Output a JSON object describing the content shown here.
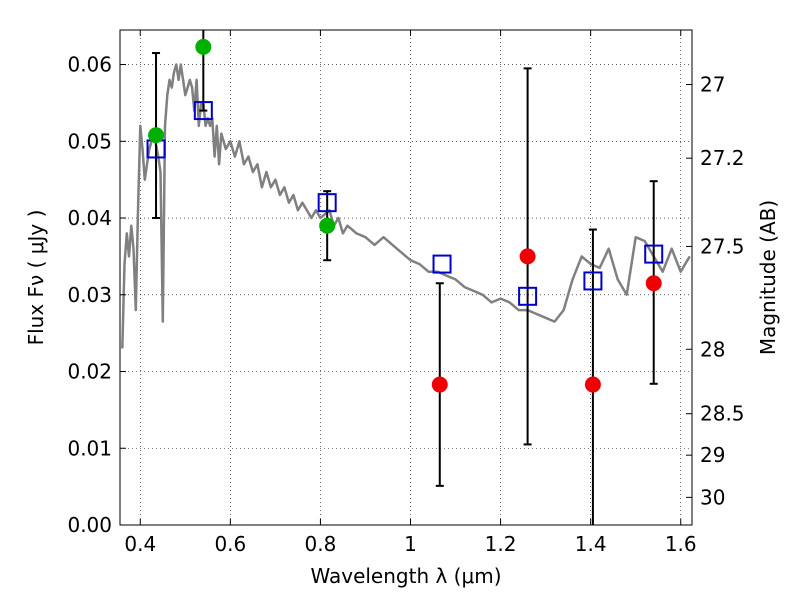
{
  "chart_data": {
    "type": "scatter",
    "xlabel": "Wavelength  λ (μm)",
    "ylabel": "Flux  Fν  ( μJy )",
    "y2label": "Magnitude (AB)",
    "xlim": [
      0.355,
      1.625
    ],
    "ylim": [
      0.0,
      0.0645
    ],
    "grid": true,
    "legend": "none",
    "x_ticks": [
      {
        "v": 0.4,
        "label": "0.4"
      },
      {
        "v": 0.6,
        "label": "0.6"
      },
      {
        "v": 0.8,
        "label": "0.8"
      },
      {
        "v": 1.0,
        "label": "1"
      },
      {
        "v": 1.2,
        "label": "1.2"
      },
      {
        "v": 1.4,
        "label": "1.4"
      },
      {
        "v": 1.6,
        "label": "1.6"
      }
    ],
    "y_ticks": [
      {
        "v": 0.0,
        "label": "0.00"
      },
      {
        "v": 0.01,
        "label": "0.01"
      },
      {
        "v": 0.02,
        "label": "0.02"
      },
      {
        "v": 0.03,
        "label": "0.03"
      },
      {
        "v": 0.04,
        "label": "0.04"
      },
      {
        "v": 0.05,
        "label": "0.05"
      },
      {
        "v": 0.06,
        "label": "0.06"
      }
    ],
    "y2_ticks": [
      {
        "flux": 0.0574,
        "label": "27"
      },
      {
        "flux": 0.0478,
        "label": "27.2"
      },
      {
        "flux": 0.0363,
        "label": "27.5"
      },
      {
        "flux": 0.0229,
        "label": "28"
      },
      {
        "flux": 0.0145,
        "label": "28.5"
      },
      {
        "flux": 0.0091,
        "label": "29"
      },
      {
        "flux": 0.0036,
        "label": "30"
      }
    ],
    "colors": {
      "model_spectrum": "#808080",
      "model_photometry": "#0000cc",
      "detection": "#00b000",
      "upper_limit": "#ee0000",
      "error_bar": "#000000"
    },
    "series": [
      {
        "kind": "spectrum",
        "x": [
          0.36,
          0.365,
          0.37,
          0.375,
          0.38,
          0.385,
          0.39,
          0.395,
          0.4,
          0.405,
          0.41,
          0.415,
          0.42,
          0.43,
          0.44,
          0.445,
          0.45,
          0.455,
          0.46,
          0.465,
          0.47,
          0.475,
          0.48,
          0.485,
          0.49,
          0.495,
          0.5,
          0.505,
          0.51,
          0.515,
          0.52,
          0.525,
          0.53,
          0.535,
          0.54,
          0.545,
          0.55,
          0.555,
          0.56,
          0.565,
          0.57,
          0.575,
          0.58,
          0.585,
          0.59,
          0.6,
          0.61,
          0.62,
          0.63,
          0.64,
          0.65,
          0.66,
          0.67,
          0.68,
          0.69,
          0.7,
          0.71,
          0.72,
          0.73,
          0.74,
          0.75,
          0.76,
          0.77,
          0.78,
          0.79,
          0.8,
          0.81,
          0.82,
          0.83,
          0.84,
          0.85,
          0.86,
          0.87,
          0.88,
          0.9,
          0.92,
          0.94,
          0.96,
          0.98,
          1.0,
          1.02,
          1.04,
          1.06,
          1.08,
          1.1,
          1.12,
          1.14,
          1.16,
          1.18,
          1.2,
          1.22,
          1.24,
          1.26,
          1.28,
          1.3,
          1.32,
          1.34,
          1.36,
          1.38,
          1.4,
          1.42,
          1.44,
          1.46,
          1.48,
          1.5,
          1.52,
          1.54,
          1.56,
          1.58,
          1.6,
          1.62
        ],
        "y": [
          0.023,
          0.034,
          0.038,
          0.035,
          0.039,
          0.036,
          0.028,
          0.041,
          0.052,
          0.049,
          0.045,
          0.047,
          0.049,
          0.051,
          0.048,
          0.046,
          0.0265,
          0.052,
          0.056,
          0.058,
          0.057,
          0.059,
          0.06,
          0.058,
          0.06,
          0.058,
          0.056,
          0.057,
          0.058,
          0.057,
          0.054,
          0.058,
          0.052,
          0.055,
          0.055,
          0.052,
          0.053,
          0.052,
          0.053,
          0.048,
          0.052,
          0.047,
          0.051,
          0.05,
          0.049,
          0.05,
          0.048,
          0.05,
          0.047,
          0.048,
          0.046,
          0.047,
          0.044,
          0.046,
          0.044,
          0.045,
          0.043,
          0.044,
          0.042,
          0.043,
          0.041,
          0.042,
          0.041,
          0.04,
          0.041,
          0.04,
          0.0405,
          0.041,
          0.039,
          0.04,
          0.038,
          0.039,
          0.0385,
          0.038,
          0.0375,
          0.0365,
          0.0375,
          0.0365,
          0.0355,
          0.0345,
          0.034,
          0.033,
          0.033,
          0.0325,
          0.032,
          0.031,
          0.0305,
          0.03,
          0.029,
          0.0295,
          0.029,
          0.028,
          0.028,
          0.0275,
          0.027,
          0.0265,
          0.028,
          0.032,
          0.035,
          0.034,
          0.0335,
          0.036,
          0.032,
          0.03,
          0.0375,
          0.037,
          0.035,
          0.033,
          0.036,
          0.033,
          0.035
        ]
      },
      {
        "kind": "model_photometry",
        "x": [
          0.435,
          0.54,
          0.815,
          1.07,
          1.26,
          1.405,
          1.54
        ],
        "y": [
          0.049,
          0.054,
          0.042,
          0.034,
          0.0298,
          0.0318,
          0.0353
        ]
      },
      {
        "kind": "detection",
        "x": [
          0.435,
          0.54,
          0.815
        ],
        "y": [
          0.0508,
          0.0623,
          0.039
        ],
        "yerr_low": [
          0.04,
          0.054,
          0.0345
        ],
        "yerr_high": [
          0.0615,
          0.0645,
          0.0435
        ]
      },
      {
        "kind": "upper_limit",
        "x": [
          1.065,
          1.26,
          1.405,
          1.54
        ],
        "y": [
          0.0183,
          0.035,
          0.0183,
          0.0315
        ],
        "yerr_low": [
          0.0051,
          0.0105,
          0.0,
          0.0184
        ],
        "yerr_high": [
          0.0315,
          0.0595,
          0.0385,
          0.0448
        ]
      }
    ]
  }
}
